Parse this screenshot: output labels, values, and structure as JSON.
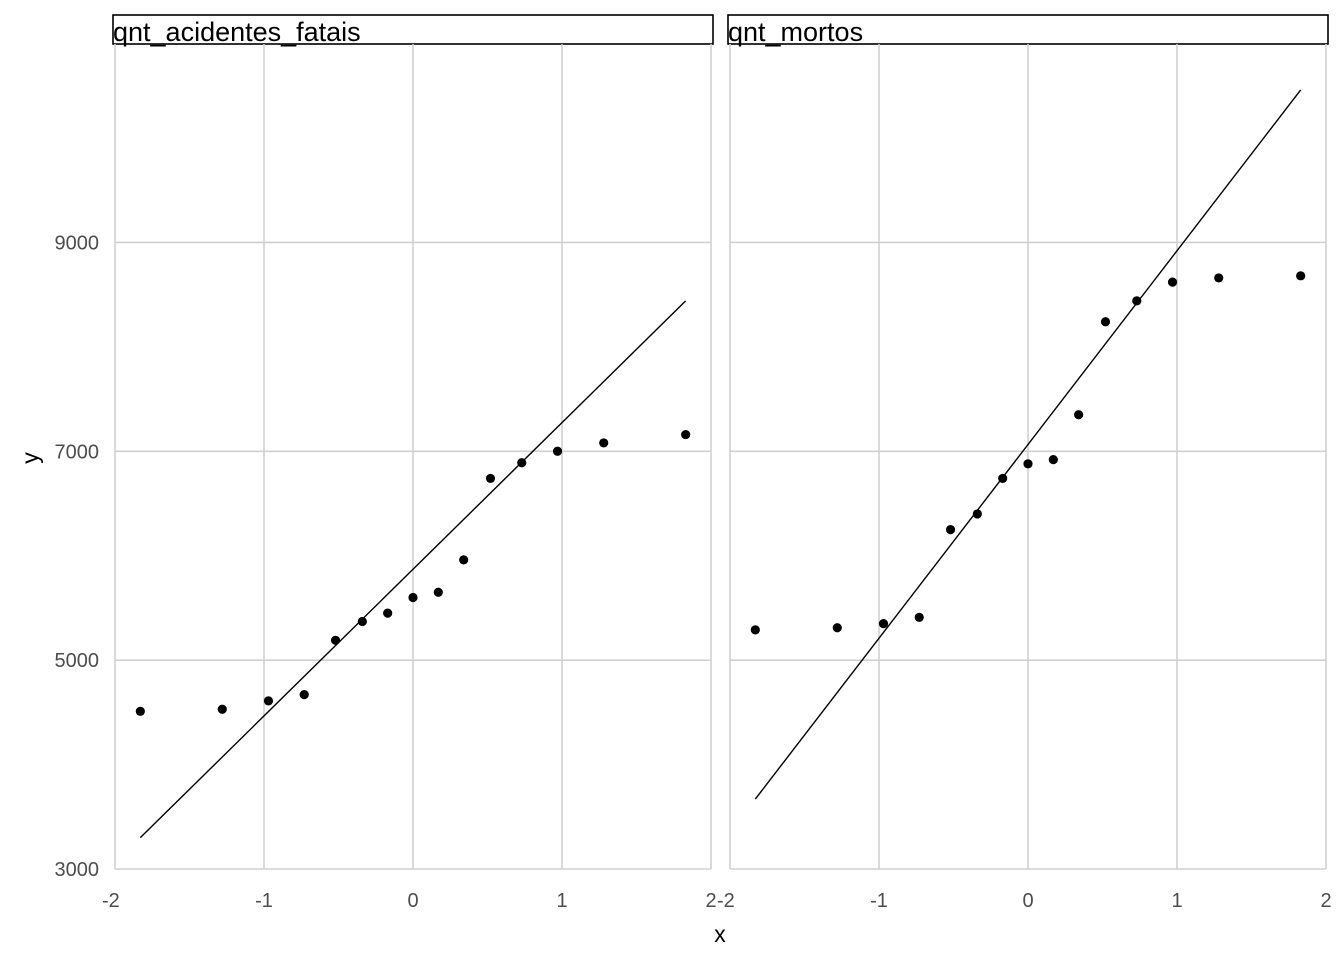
{
  "chart_data": [
    {
      "type": "scatter",
      "facet": "qnt_acidentes_fatais",
      "xlabel": "x",
      "ylabel": "y",
      "xlim": [
        -2,
        2
      ],
      "ylim": [
        3000,
        10900
      ],
      "x_ticks": [
        -2,
        -1,
        0,
        1,
        2
      ],
      "y_ticks": [
        3000,
        5000,
        7000,
        9000
      ],
      "grid": true,
      "points": [
        {
          "x": -1.83,
          "y": 4510
        },
        {
          "x": -1.28,
          "y": 4530
        },
        {
          "x": -0.97,
          "y": 4610
        },
        {
          "x": -0.73,
          "y": 4670
        },
        {
          "x": -0.52,
          "y": 5190
        },
        {
          "x": -0.34,
          "y": 5370
        },
        {
          "x": -0.17,
          "y": 5450
        },
        {
          "x": 0.0,
          "y": 5600
        },
        {
          "x": 0.17,
          "y": 5650
        },
        {
          "x": 0.34,
          "y": 5960
        },
        {
          "x": 0.52,
          "y": 6740
        },
        {
          "x": 0.73,
          "y": 6890
        },
        {
          "x": 0.97,
          "y": 7000
        },
        {
          "x": 1.28,
          "y": 7080
        },
        {
          "x": 1.83,
          "y": 7160
        }
      ],
      "reference_line": {
        "x": [
          -1.83,
          1.83
        ],
        "y": [
          3300,
          8440
        ]
      }
    },
    {
      "type": "scatter",
      "facet": "qnt_mortos",
      "xlabel": "x",
      "ylabel": "y",
      "xlim": [
        -2,
        2
      ],
      "ylim": [
        3000,
        10900
      ],
      "x_ticks": [
        -2,
        -1,
        0,
        1,
        2
      ],
      "y_ticks": [
        3000,
        5000,
        7000,
        9000
      ],
      "grid": true,
      "points": [
        {
          "x": -1.83,
          "y": 5290
        },
        {
          "x": -1.28,
          "y": 5310
        },
        {
          "x": -0.97,
          "y": 5350
        },
        {
          "x": -0.73,
          "y": 5410
        },
        {
          "x": -0.52,
          "y": 6250
        },
        {
          "x": -0.34,
          "y": 6400
        },
        {
          "x": -0.17,
          "y": 6740
        },
        {
          "x": 0.0,
          "y": 6880
        },
        {
          "x": 0.17,
          "y": 6920
        },
        {
          "x": 0.34,
          "y": 7350
        },
        {
          "x": 0.52,
          "y": 8240
        },
        {
          "x": 0.73,
          "y": 8440
        },
        {
          "x": 0.97,
          "y": 8620
        },
        {
          "x": 1.28,
          "y": 8660
        },
        {
          "x": 1.83,
          "y": 8680
        }
      ],
      "reference_line": {
        "x": [
          -1.83,
          1.83
        ],
        "y": [
          3670,
          10460
        ]
      }
    }
  ]
}
